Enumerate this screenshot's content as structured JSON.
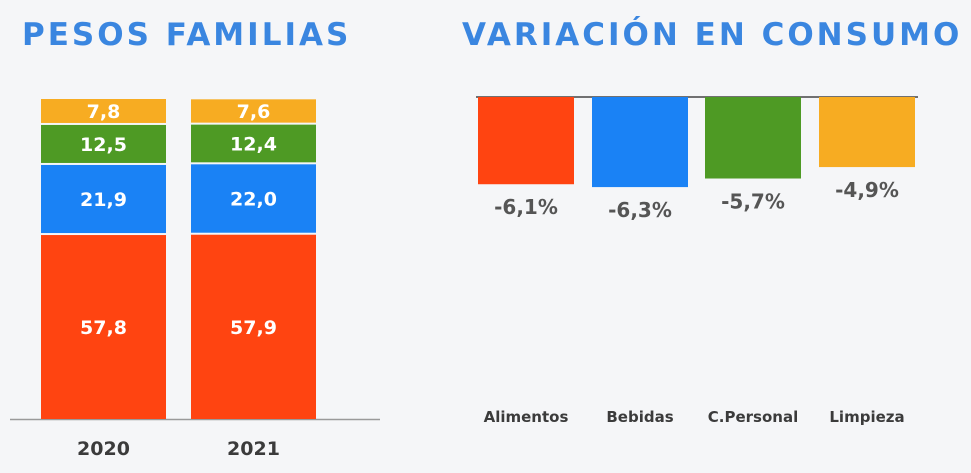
{
  "chart_data": [
    {
      "type": "bar",
      "stacked": true,
      "title": "PESOS FAMILIAS",
      "categories": [
        "2020",
        "2021"
      ],
      "series": [
        {
          "values": [
            57.8,
            57.9
          ],
          "labels": [
            "57,8",
            "57,9"
          ],
          "color": "#ff4411"
        },
        {
          "values": [
            21.9,
            22.0
          ],
          "labels": [
            "21,9",
            "22,0"
          ],
          "color": "#1a82f5"
        },
        {
          "values": [
            12.5,
            12.4
          ],
          "labels": [
            "12,5",
            "12,4"
          ],
          "color": "#4e9a24"
        },
        {
          "values": [
            7.8,
            7.6
          ],
          "labels": [
            "7,8",
            "7,6"
          ],
          "color": "#f7ac22"
        }
      ],
      "ylim": [
        0,
        100
      ]
    },
    {
      "type": "bar",
      "title": "VARIACIÓN EN CONSUMO",
      "categories": [
        "Alimentos",
        "Bebidas",
        "C.Personal",
        "Limpieza"
      ],
      "values": [
        -6.1,
        -6.3,
        -5.7,
        -4.9
      ],
      "labels": [
        "-6,1%",
        "-6,3%",
        "-5,7%",
        "-4,9%"
      ],
      "colors": [
        "#ff4411",
        "#1a82f5",
        "#4e9a24",
        "#f7ac22"
      ]
    }
  ]
}
